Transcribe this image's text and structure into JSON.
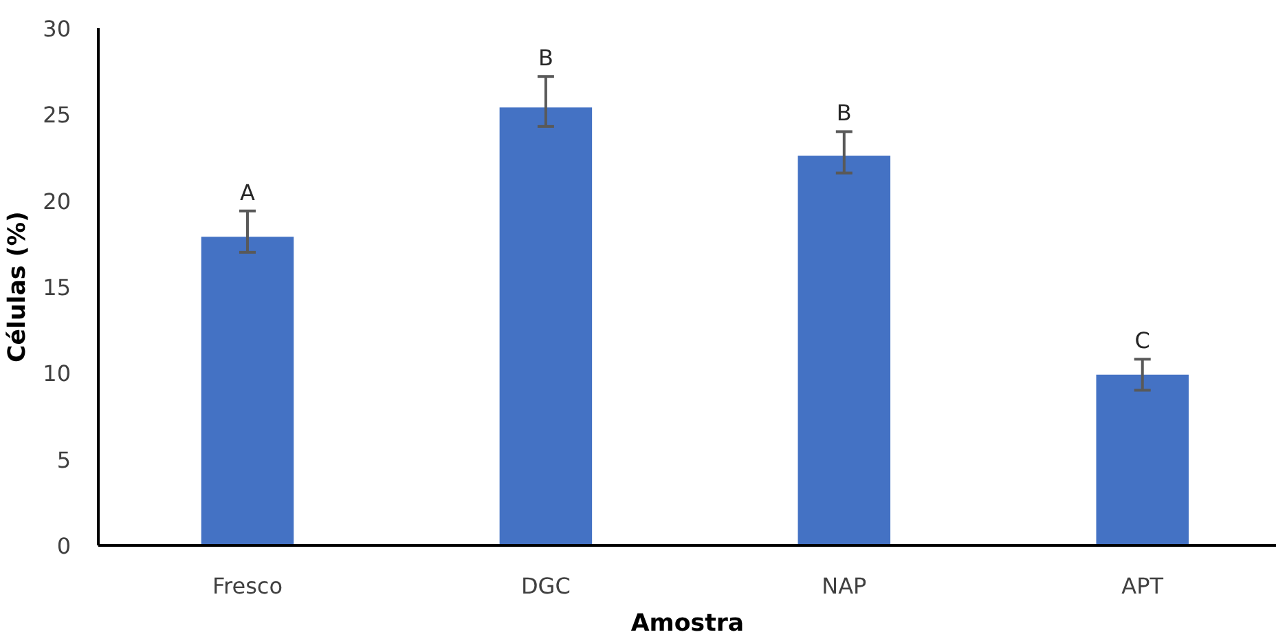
{
  "chart_data": {
    "type": "bar",
    "xlabel": "Amostra",
    "ylabel": "Células (%)",
    "categories": [
      "Fresco",
      "DGC",
      "NAP",
      "APT"
    ],
    "values": [
      17.9,
      25.4,
      22.6,
      9.9
    ],
    "errors": [
      [
        17.0,
        19.4
      ],
      [
        24.3,
        27.2
      ],
      [
        21.6,
        24.0
      ],
      [
        9.0,
        10.8
      ]
    ],
    "color": "#4472c4",
    "ylim": [
      0,
      30
    ],
    "yticks": [
      0,
      5,
      10,
      15,
      20,
      25,
      30
    ],
    "grid": false,
    "annotations": [
      "A",
      "B",
      "B",
      "C"
    ]
  }
}
